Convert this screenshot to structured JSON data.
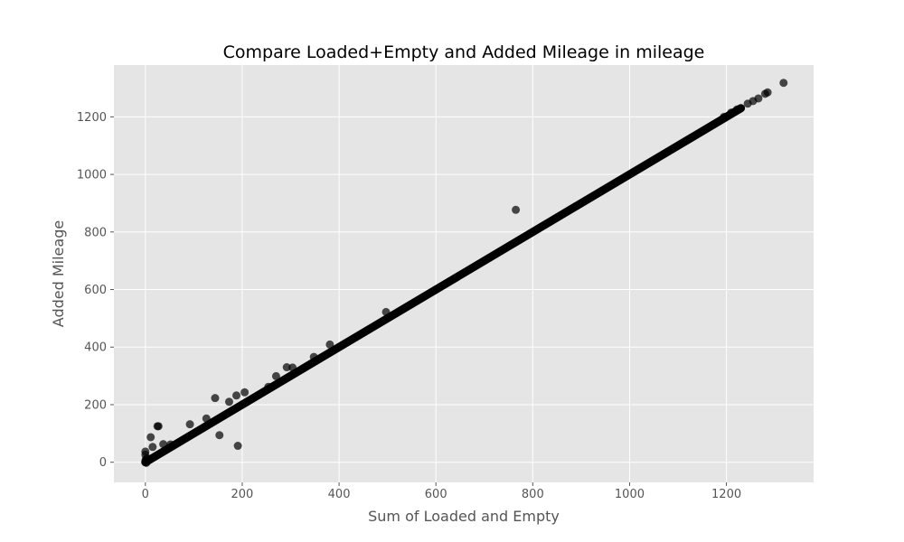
{
  "chart_data": {
    "type": "scatter",
    "title": "Compare Loaded+Empty and Added Mileage in mileage",
    "xlabel": "Sum of Loaded and Empty",
    "ylabel": "Added Mileage",
    "xlim": [
      -65,
      1380
    ],
    "ylim": [
      -70,
      1380
    ],
    "xticks": [
      0,
      200,
      400,
      600,
      800,
      1000,
      1200
    ],
    "yticks": [
      0,
      200,
      400,
      600,
      800,
      1000,
      1200
    ],
    "grid": true,
    "style": "ggplot",
    "colors": {
      "plot_background": "#e5e5e5",
      "grid": "#ffffff",
      "marker": "#000000"
    },
    "marker_opacity": 0.7,
    "diagonal_band": {
      "x_start": 0,
      "x_end": 1230,
      "relation": "y = x"
    },
    "points": [
      [
        765,
        877
      ],
      [
        497,
        522
      ],
      [
        381,
        409
      ],
      [
        348,
        366
      ],
      [
        292,
        330
      ],
      [
        304,
        329
      ],
      [
        270,
        299
      ],
      [
        254,
        262
      ],
      [
        205,
        243
      ],
      [
        188,
        232
      ],
      [
        144,
        223
      ],
      [
        173,
        210
      ],
      [
        126,
        152
      ],
      [
        92,
        132
      ],
      [
        27,
        125
      ],
      [
        25,
        125
      ],
      [
        11,
        87
      ],
      [
        15,
        53
      ],
      [
        37,
        63
      ],
      [
        52,
        62
      ],
      [
        153,
        94
      ],
      [
        191,
        57
      ],
      [
        0,
        37
      ],
      [
        0,
        26
      ],
      [
        3,
        13
      ],
      [
        0,
        4
      ],
      [
        0,
        0
      ],
      [
        2,
        -2
      ],
      [
        1,
        10
      ],
      [
        1244,
        1246
      ],
      [
        1255,
        1255
      ],
      [
        1266,
        1264
      ],
      [
        1280,
        1280
      ],
      [
        1285,
        1285
      ],
      [
        1318,
        1318
      ],
      [
        1195,
        1200
      ],
      [
        1210,
        1215
      ],
      [
        1222,
        1226
      ]
    ]
  }
}
